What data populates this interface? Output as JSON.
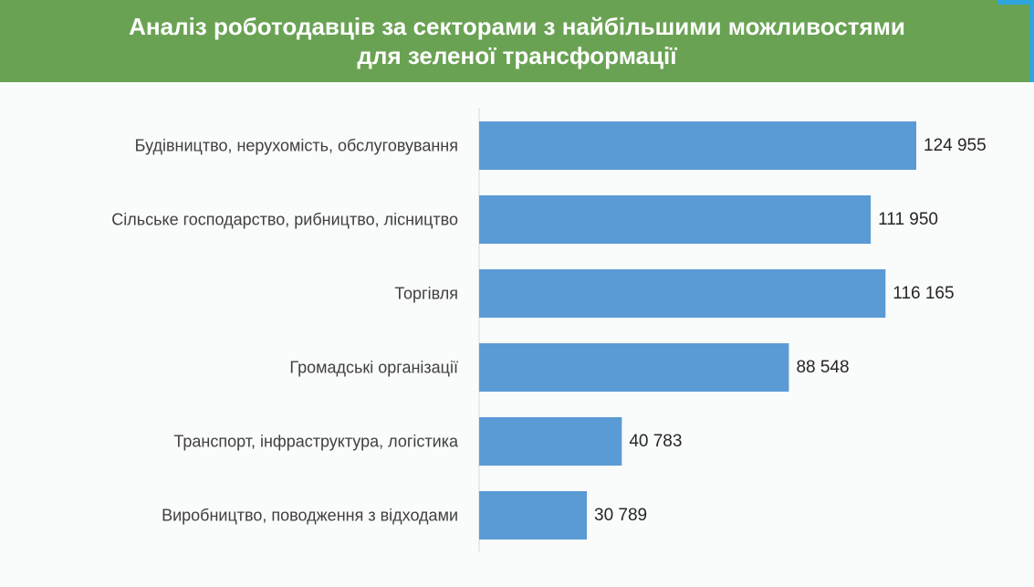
{
  "header": {
    "title_line1": "Аналіз роботодавців за секторами з найбільшими можливостями",
    "title_line2": "для зеленої трансформації"
  },
  "colors": {
    "header_bg": "#6aa253",
    "bar": "#5b9bd5",
    "accent": "#2fa6dd"
  },
  "chart_data": {
    "type": "bar",
    "orientation": "horizontal",
    "categories": [
      "Будівництво, нерухомість, обслуговування",
      "Сільське господарство, рибництво, лісництво",
      "Торгівля",
      "Громадські організації",
      "Транспорт, інфраструктура, логістика",
      "Виробництво, поводження з відходами"
    ],
    "values": [
      124955,
      111950,
      116165,
      88548,
      40783,
      30789
    ],
    "value_labels": [
      "124 955",
      "111 950",
      "116 165",
      "88 548",
      "40 783",
      "30 789"
    ],
    "xlim": [
      0,
      124955
    ],
    "grid": false
  }
}
